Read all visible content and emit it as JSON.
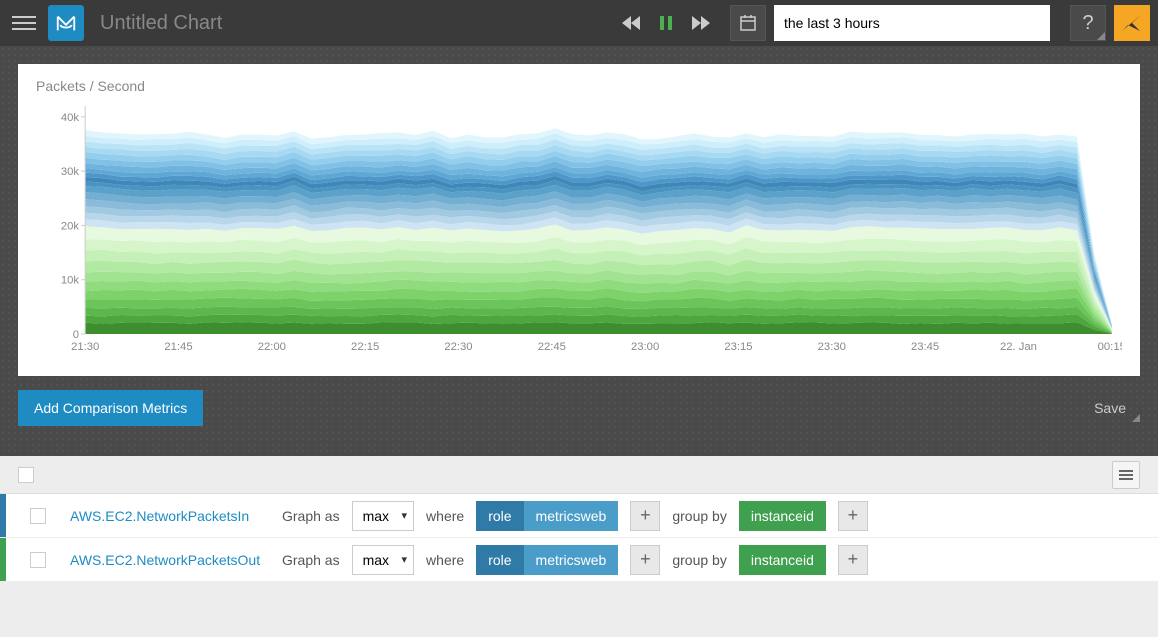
{
  "header": {
    "title": "Untitled Chart",
    "time_range_value": "the last 3 hours",
    "help_label": "?"
  },
  "chart": {
    "type": "stacked-area",
    "ylabel": "Packets / Second",
    "ylim": [
      0,
      42000
    ],
    "ytick_step": 10000,
    "yticks": [
      "0",
      "10k",
      "20k",
      "30k",
      "40k"
    ],
    "xticks": [
      "21:30",
      "21:45",
      "22:00",
      "22:15",
      "22:30",
      "22:45",
      "23:00",
      "23:15",
      "23:30",
      "23:45",
      "22. Jan",
      "00:15"
    ],
    "x_range_pts": 60,
    "background_color": "#ffffff",
    "axis_color": "#cccccc",
    "label_color": "#888888",
    "drop_at_end": true,
    "series": [
      {
        "base": 2000,
        "color": "#3e8e30"
      },
      {
        "base": 1400,
        "color": "#4fa63f"
      },
      {
        "base": 1400,
        "color": "#5cb84b"
      },
      {
        "base": 1600,
        "color": "#6cc55a"
      },
      {
        "base": 1600,
        "color": "#7dd26a"
      },
      {
        "base": 1600,
        "color": "#8fdb7d"
      },
      {
        "base": 1700,
        "color": "#a1e390"
      },
      {
        "base": 1900,
        "color": "#b3eaa3"
      },
      {
        "base": 1900,
        "color": "#c5f0b7"
      },
      {
        "base": 2000,
        "color": "#d6f5cb"
      },
      {
        "base": 2200,
        "color": "#e7fae0"
      },
      {
        "base": 1200,
        "color": "#cfe4f2"
      },
      {
        "base": 1200,
        "color": "#b8d7ea"
      },
      {
        "base": 1200,
        "color": "#a1c9e2"
      },
      {
        "base": 1200,
        "color": "#8abcda"
      },
      {
        "base": 1200,
        "color": "#73afd2"
      },
      {
        "base": 1200,
        "color": "#5ca1ca"
      },
      {
        "base": 800,
        "color": "#4a94c2"
      },
      {
        "base": 800,
        "color": "#3f87b8"
      },
      {
        "base": 800,
        "color": "#4f97c8"
      },
      {
        "base": 800,
        "color": "#5fa7d4"
      },
      {
        "base": 1000,
        "color": "#70b4de"
      },
      {
        "base": 1000,
        "color": "#82c1e6"
      },
      {
        "base": 1000,
        "color": "#94ceed"
      },
      {
        "base": 1000,
        "color": "#a7daf2"
      },
      {
        "base": 1000,
        "color": "#bae4f6"
      },
      {
        "base": 1000,
        "color": "#cdeefa"
      },
      {
        "base": 1000,
        "color": "#e0f5fc"
      }
    ]
  },
  "actions": {
    "add_comparison_label": "Add Comparison Metrics",
    "save_label": "Save"
  },
  "metrics": {
    "graph_as_label": "Graph as",
    "where_label": "where",
    "group_by_label": "group by",
    "agg_options": [
      "max"
    ],
    "rows": [
      {
        "stripe_color": "#2f7aa6",
        "name": "AWS.EC2.NetworkPacketsIn",
        "agg": "max",
        "filter_key": "role",
        "filter_value": "metricsweb",
        "group_by": "instanceid",
        "filter_key_color": "#2f7aa6",
        "filter_value_color": "#4b9dc9",
        "group_by_color": "#3fa04f"
      },
      {
        "stripe_color": "#3fa04f",
        "name": "AWS.EC2.NetworkPacketsOut",
        "agg": "max",
        "filter_key": "role",
        "filter_value": "metricsweb",
        "group_by": "instanceid",
        "filter_key_color": "#2f7aa6",
        "filter_value_color": "#4b9dc9",
        "group_by_color": "#3fa04f"
      }
    ]
  }
}
